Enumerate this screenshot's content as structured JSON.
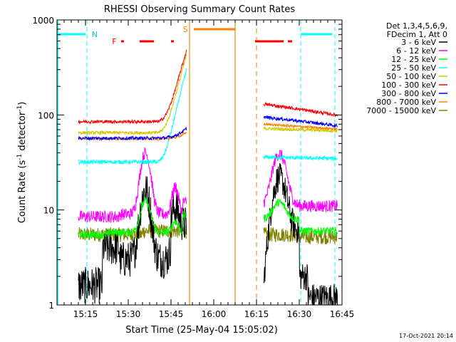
{
  "chart_data": {
    "type": "line",
    "title": "RHESSI Observing Summary Count Rates",
    "xlabel": "Start Time (25-May-04 15:05:02)",
    "ylabel": "Count Rate (s⁻¹ detector⁻¹)",
    "ylabel_main": "Count Rate (s",
    "ylabel_sup1": "-1",
    "ylabel_mid": " detector",
    "ylabel_sup2": "-1",
    "ylabel_end": ")",
    "yscale": "log",
    "ylim": [
      1,
      1000
    ],
    "xlim_minutes": [
      0,
      100
    ],
    "x_ticks": [
      {
        "m": 10,
        "label": "15:15"
      },
      {
        "m": 25,
        "label": "15:30"
      },
      {
        "m": 40,
        "label": "15:45"
      },
      {
        "m": 55,
        "label": "16:00"
      },
      {
        "m": 70,
        "label": "16:15"
      },
      {
        "m": 85,
        "label": "16:30"
      },
      {
        "m": 100,
        "label": "16:45"
      }
    ],
    "y_ticks": [
      {
        "v": 1,
        "label": "1"
      },
      {
        "v": 10,
        "label": "10"
      },
      {
        "v": 100,
        "label": "100"
      },
      {
        "v": 1000,
        "label": "1000"
      }
    ],
    "legend_header": [
      "Det 1,3,4,5,6,9,",
      "FDecim 1, Att 0"
    ],
    "series": [
      {
        "name": "3 - 6 keV",
        "color": "#000000"
      },
      {
        "name": "6 - 12 keV",
        "color": "#ff00ff"
      },
      {
        "name": "12 - 25 keV",
        "color": "#00ff00"
      },
      {
        "name": "25 - 50 keV",
        "color": "#00ffff"
      },
      {
        "name": "50 - 100 keV",
        "color": "#d2c800"
      },
      {
        "name": "100 - 300 keV",
        "color": "#ff0000"
      },
      {
        "name": "300 - 800 keV",
        "color": "#0000ff"
      },
      {
        "name": "800 - 7000 keV",
        "color": "#ff8000"
      },
      {
        "name": "7000 - 15000 keV",
        "color": "#808000"
      }
    ],
    "flags": {
      "N_label": "N",
      "F_label": "F",
      "S_label": "S"
    },
    "footer_date": "17-Oct-2021 20:14"
  }
}
